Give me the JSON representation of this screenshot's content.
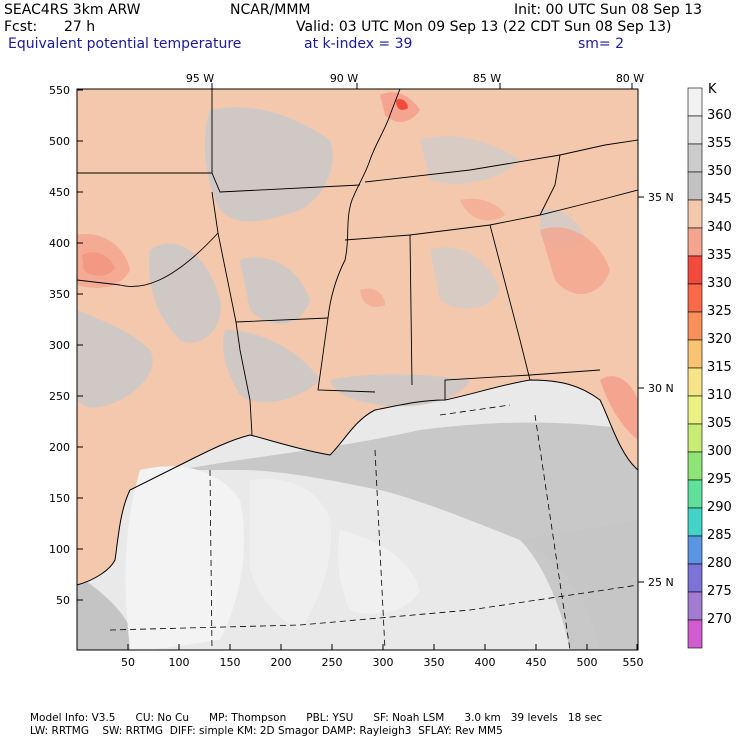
{
  "header": {
    "model": "SEAC4RS  3km ARW",
    "org": "NCAR/MMM",
    "init": "Init: 00 UTC Sun 08 Sep 13",
    "fcst_label": "Fcst:",
    "fcst_value": "27 h",
    "valid": "Valid: 03 UTC Mon 09 Sep 13 (22 CDT Sun 08 Sep 13)",
    "field": "Equivalent potential temperature",
    "level": "at k-index =  39",
    "smoothing": "sm= 2"
  },
  "axes": {
    "x_ticks": [
      "50",
      "100",
      "150",
      "200",
      "250",
      "300",
      "350",
      "400",
      "450",
      "500",
      "550"
    ],
    "y_ticks": [
      "50",
      "100",
      "150",
      "200",
      "250",
      "300",
      "350",
      "400",
      "450",
      "500",
      "550"
    ],
    "lon_labels": [
      "95 W",
      "90 W",
      "85 W",
      "80 W"
    ],
    "lat_labels": [
      "35 N",
      "30 N",
      "25 N"
    ]
  },
  "legend": {
    "unit": "K",
    "levels": [
      "360",
      "355",
      "350",
      "345",
      "340",
      "335",
      "330",
      "325",
      "320",
      "315",
      "310",
      "305",
      "300",
      "295",
      "290",
      "285",
      "280",
      "275",
      "270"
    ],
    "colors": [
      "#f2f2f2",
      "#e6e6e6",
      "#cccccc",
      "#c2c2c2",
      "#f3c8ad",
      "#f5a58f",
      "#f24a3c",
      "#f86a4a",
      "#f7905a",
      "#f8c474",
      "#f6e38a",
      "#ebf183",
      "#c8ec74",
      "#8ee477",
      "#5fe09b",
      "#44d3c9",
      "#5a94e3",
      "#7c73d6",
      "#a27cd0",
      "#d15cd0"
    ]
  },
  "footer": {
    "line1": "Model Info: V3.5      CU: No Cu      MP: Thompson      PBL: YSU      SF: Noah LSM      3.0 km   39 levels   18 sec",
    "line2": "LW: RRTMG    SW: RRTMG  DIFF: simple KM: 2D Smagor DAMP: Rayleigh3  SFLAY: Rev MM5"
  }
}
